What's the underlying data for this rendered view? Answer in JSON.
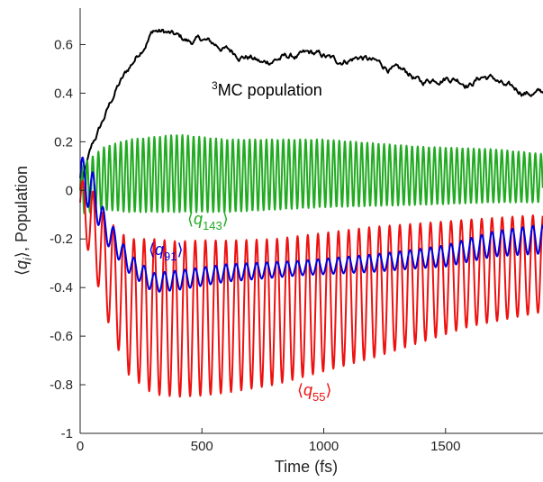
{
  "chart_data": {
    "type": "line",
    "xlabel": "Time (fs)",
    "ylabel": "⟨q_i⟩, Population",
    "xlim": [
      0,
      1900
    ],
    "ylim": [
      -1,
      0.75
    ],
    "x_ticks": [
      0,
      500,
      1000,
      1500
    ],
    "y_ticks": [
      -1,
      -0.8,
      -0.6,
      -0.4,
      -0.2,
      0,
      0.2,
      0.4,
      0.6
    ],
    "x_tick_labels": [
      "0",
      "500",
      "1000",
      "1500"
    ],
    "y_tick_labels": [
      "-1",
      "-0.8",
      "-0.6",
      "-0.4",
      "-0.2",
      "0",
      "0.2",
      "0.4",
      "0.6"
    ],
    "grid": false,
    "series": [
      {
        "name": "3MC population",
        "color": "#000000",
        "kind": "noisy",
        "envelope_x": [
          0,
          20,
          50,
          100,
          150,
          200,
          250,
          300,
          350,
          400,
          450,
          500,
          550,
          600,
          650,
          700,
          750,
          800,
          850,
          900,
          950,
          1000,
          1050,
          1100,
          1150,
          1200,
          1250,
          1300,
          1350,
          1400,
          1450,
          1500,
          1550,
          1600,
          1650,
          1700,
          1750,
          1800,
          1850,
          1900
        ],
        "envelope_y": [
          0.0,
          0.08,
          0.18,
          0.3,
          0.42,
          0.5,
          0.58,
          0.66,
          0.65,
          0.63,
          0.61,
          0.62,
          0.6,
          0.58,
          0.56,
          0.55,
          0.52,
          0.54,
          0.55,
          0.55,
          0.56,
          0.55,
          0.53,
          0.54,
          0.55,
          0.53,
          0.51,
          0.49,
          0.48,
          0.44,
          0.46,
          0.47,
          0.46,
          0.44,
          0.47,
          0.46,
          0.42,
          0.41,
          0.4,
          0.4
        ]
      },
      {
        "name": "⟨q143⟩",
        "color": "#22aa22",
        "kind": "oscillation",
        "period_fs": 23,
        "center_x": [
          0,
          100,
          200,
          400,
          600,
          1000,
          1400,
          1700,
          1900
        ],
        "center_y": [
          0.0,
          0.05,
          0.06,
          0.07,
          0.06,
          0.07,
          0.06,
          0.06,
          0.05
        ],
        "amp_x": [
          0,
          100,
          200,
          400,
          600,
          1000,
          1400,
          1700,
          1900
        ],
        "amp_y": [
          0.1,
          0.13,
          0.15,
          0.16,
          0.15,
          0.14,
          0.12,
          0.11,
          0.1
        ]
      },
      {
        "name": "⟨q91⟩",
        "color": "#0000dd",
        "kind": "oscillation",
        "period_fs": 42,
        "center_x": [
          0,
          50,
          100,
          200,
          300,
          400,
          600,
          900,
          1200,
          1500,
          1700,
          1900
        ],
        "center_y": [
          0.05,
          0.0,
          -0.15,
          -0.3,
          -0.38,
          -0.37,
          -0.34,
          -0.32,
          -0.3,
          -0.27,
          -0.22,
          -0.2
        ],
        "amp_x": [
          0,
          50,
          100,
          200,
          400,
          900,
          1400,
          1900
        ],
        "amp_y": [
          0.1,
          0.08,
          0.06,
          0.04,
          0.04,
          0.03,
          0.04,
          0.06
        ]
      },
      {
        "name": "⟨q55⟩",
        "color": "#ee1111",
        "kind": "oscillation",
        "period_fs": 42,
        "center_x": [
          0,
          50,
          100,
          150,
          200,
          300,
          400,
          600,
          800,
          1000,
          1200,
          1400,
          1600,
          1900
        ],
        "center_y": [
          -0.05,
          -0.15,
          -0.3,
          -0.4,
          -0.48,
          -0.52,
          -0.53,
          -0.52,
          -0.5,
          -0.46,
          -0.42,
          -0.38,
          -0.34,
          -0.3
        ],
        "amp_x": [
          0,
          50,
          100,
          200,
          300,
          500,
          800,
          1200,
          1600,
          1900
        ],
        "amp_y": [
          0.1,
          0.15,
          0.2,
          0.28,
          0.32,
          0.32,
          0.3,
          0.27,
          0.22,
          0.2
        ]
      }
    ],
    "annotations": {
      "mc_sup": "3",
      "mc_text": "MC population",
      "q143_base": "q",
      "q143_sub": "143",
      "q91_base": "q",
      "q91_sub": "91",
      "q55_base": "q",
      "q55_sub": "55",
      "ylabel_base": "q",
      "ylabel_sub": "i",
      "ylabel_rest": ", Population",
      "lang": "⟨",
      "rang": "⟩"
    }
  }
}
